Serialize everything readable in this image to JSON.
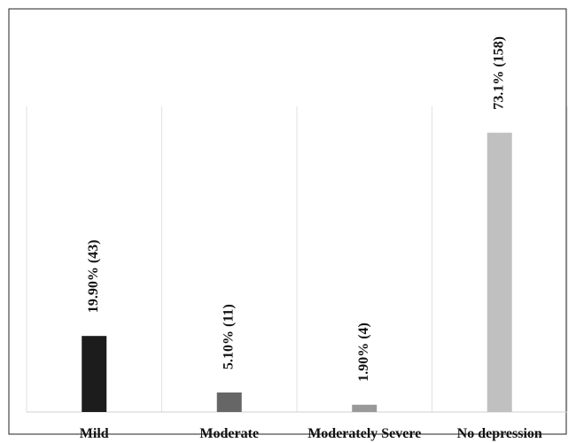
{
  "chart_data": {
    "type": "bar",
    "categories": [
      "Mild",
      "Moderate",
      "Moderately Severe",
      "No depression"
    ],
    "values": [
      19.9,
      5.1,
      1.9,
      73.1
    ],
    "value_labels": [
      "19.90% (43)",
      "5.10% (11)",
      "1.90% (4)",
      "73.1% (158)"
    ],
    "colors": [
      "#1c1c1c",
      "#666666",
      "#999999",
      "#c0c0c0"
    ],
    "ylim": [
      0,
      80
    ],
    "grid": true
  }
}
